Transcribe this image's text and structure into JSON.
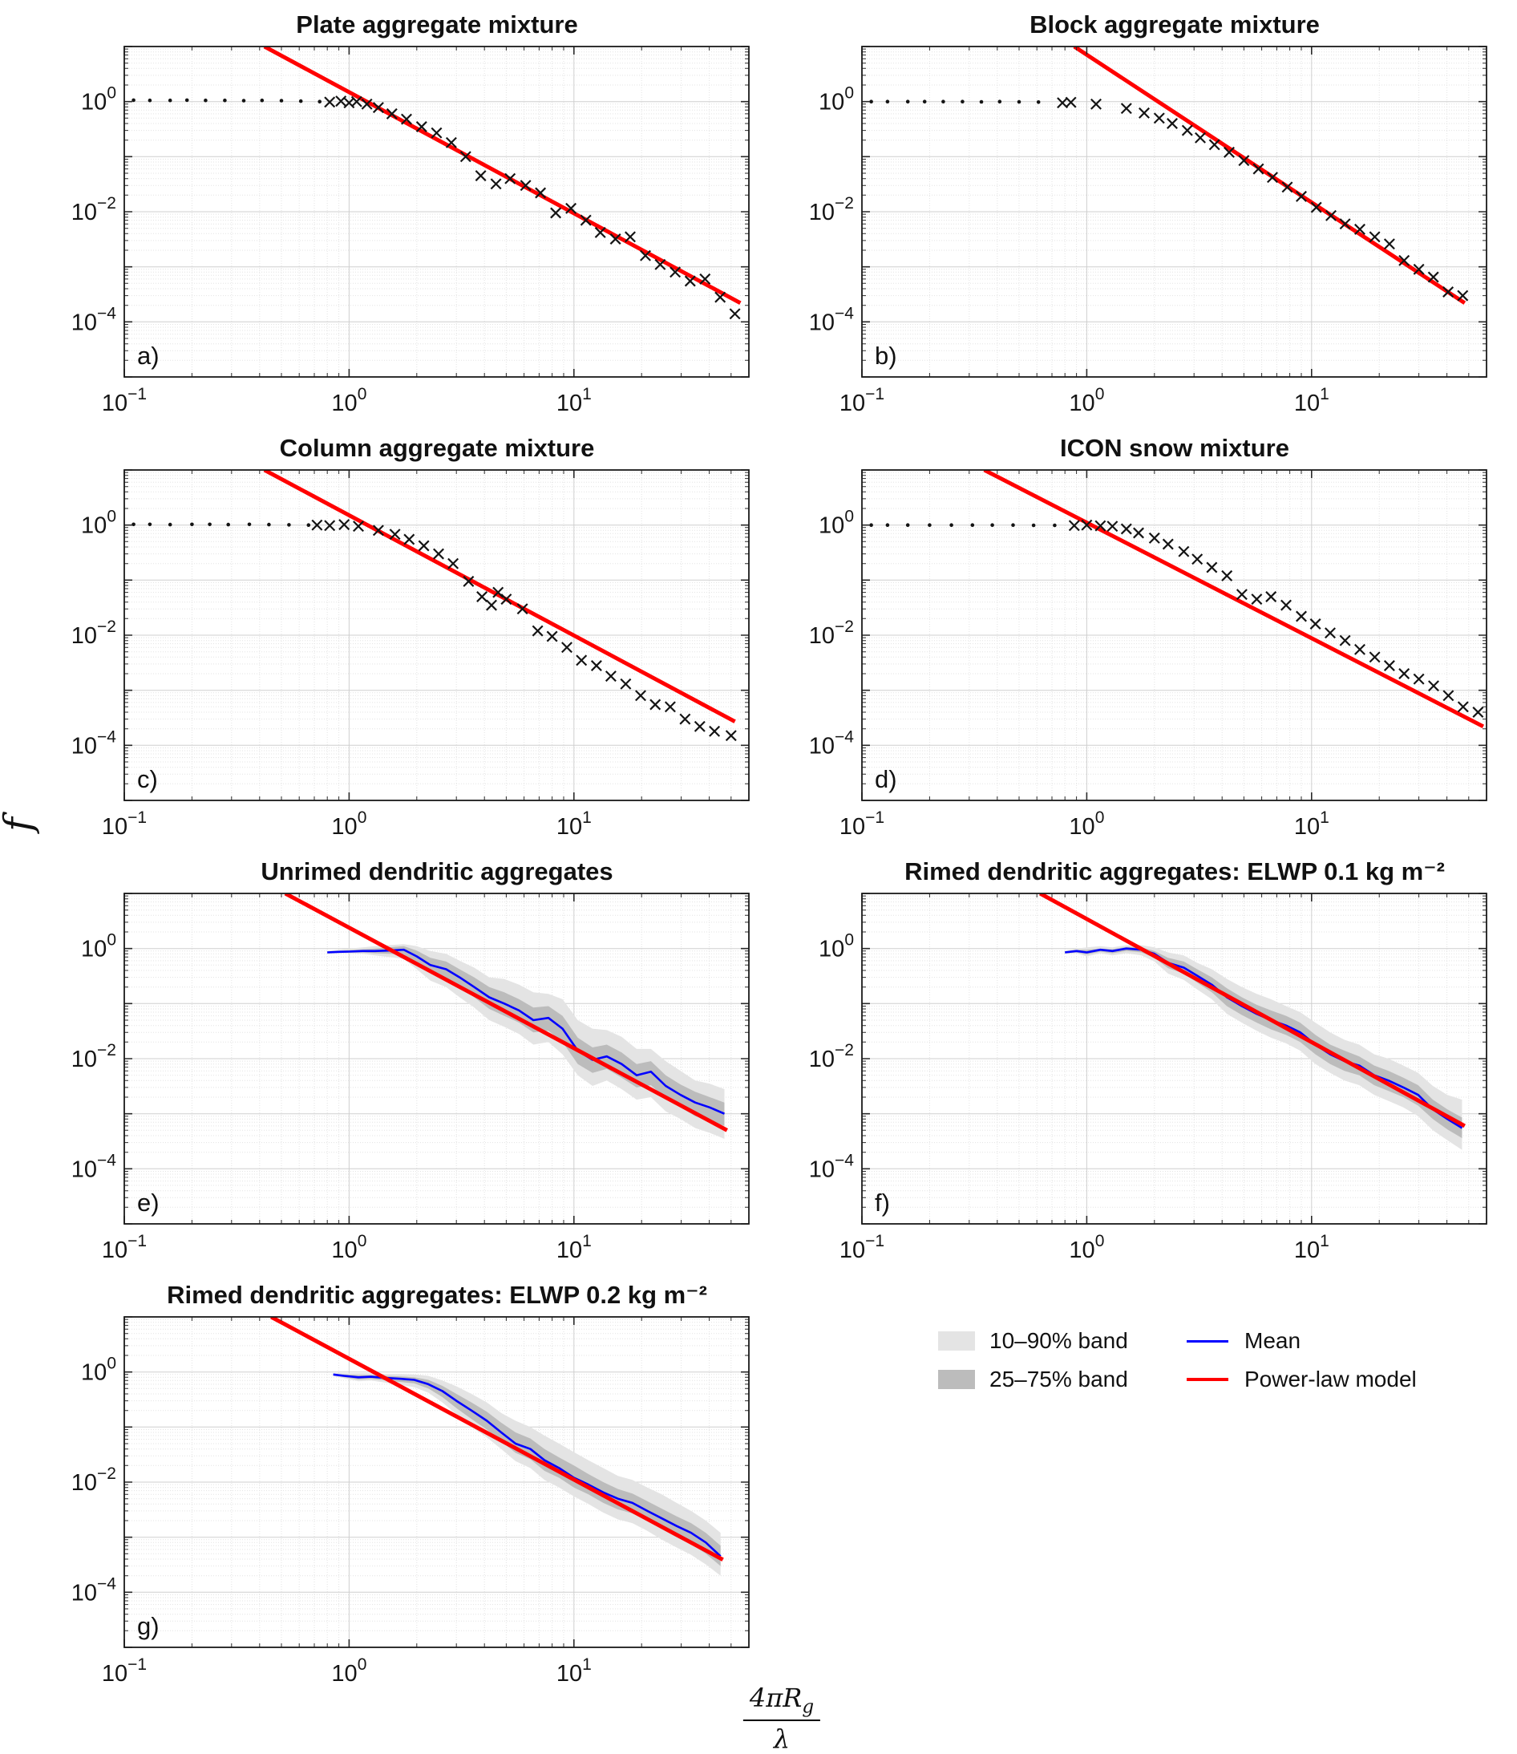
{
  "chart_data": {
    "type": "line",
    "ylabel": "f",
    "xlabel": {
      "num_main": "4πR",
      "num_sub": "g",
      "den": "λ"
    },
    "xlim": [
      0.1,
      60
    ],
    "ylim": [
      1e-05,
      10
    ],
    "xticks": [
      0.1,
      1,
      10
    ],
    "yticks": [
      1,
      0.01,
      0.0001
    ],
    "grid": "log-log, major and minor gridlines on",
    "colors": {
      "mean": "#0000ff",
      "powerlaw": "#ff0000",
      "band_light": "#e4e4e4",
      "band_dark": "#bcbcbc",
      "marker": "#141414"
    },
    "legend": [
      {
        "key": "band_light",
        "label": "10–90% band"
      },
      {
        "key": "band_dark",
        "label": "25–75% band"
      },
      {
        "key": "mean",
        "label": "Mean"
      },
      {
        "key": "powerlaw",
        "label": "Power-law model"
      }
    ],
    "panels": [
      {
        "id": "a",
        "label": "a)",
        "title": "Plate aggregate mixture",
        "kind": "scatter",
        "dots": {
          "x": [
            0.11,
            0.13,
            0.16,
            0.19,
            0.23,
            0.28,
            0.34,
            0.41,
            0.5,
            0.61,
            0.74
          ],
          "y": [
            1.06,
            1.05,
            1.05,
            1.06,
            1.05,
            1.05,
            1.04,
            1.05,
            1.04,
            1.02,
            1.0
          ]
        },
        "crosses": {
          "x": [
            0.82,
            0.92,
            1.0,
            1.08,
            1.2,
            1.35,
            1.55,
            1.8,
            2.1,
            2.45,
            2.85,
            3.3,
            3.85,
            4.5,
            5.2,
            6.1,
            7.1,
            8.3,
            9.7,
            11.3,
            13.1,
            15.3,
            17.8,
            20.8,
            24.2,
            28.2,
            32.9,
            38.3,
            44.7,
            52
          ],
          "y": [
            0.98,
            1.02,
            0.95,
            1.0,
            0.9,
            0.78,
            0.6,
            0.48,
            0.35,
            0.27,
            0.18,
            0.1,
            0.045,
            0.032,
            0.04,
            0.03,
            0.022,
            0.0095,
            0.0115,
            0.007,
            0.0042,
            0.0032,
            0.0035,
            0.0016,
            0.0011,
            0.0008,
            0.00055,
            0.0006,
            0.00028,
            0.00014
          ]
        },
        "powerlaw": {
          "x": [
            0.42,
            55
          ],
          "y": [
            10,
            0.00022
          ]
        }
      },
      {
        "id": "b",
        "label": "b)",
        "title": "Block aggregate mixture",
        "kind": "scatter",
        "dots": {
          "x": [
            0.11,
            0.13,
            0.16,
            0.19,
            0.23,
            0.28,
            0.34,
            0.41,
            0.5,
            0.61
          ],
          "y": [
            1.0,
            1.0,
            1.0,
            1.0,
            1.0,
            1.0,
            0.99,
            1.0,
            0.99,
            0.98
          ]
        },
        "crosses": {
          "x": [
            0.78,
            0.85,
            1.1,
            1.5,
            1.8,
            2.1,
            2.4,
            2.8,
            3.2,
            3.7,
            4.3,
            5.0,
            5.8,
            6.7,
            7.8,
            9.0,
            10.5,
            12.2,
            14.1,
            16.4,
            19.1,
            22.2,
            25.8,
            30.0,
            34.8,
            40.5,
            47
          ],
          "y": [
            0.95,
            0.97,
            0.9,
            0.75,
            0.62,
            0.5,
            0.4,
            0.3,
            0.22,
            0.165,
            0.12,
            0.085,
            0.06,
            0.042,
            0.028,
            0.019,
            0.012,
            0.0085,
            0.006,
            0.0048,
            0.0035,
            0.0026,
            0.0013,
            0.0009,
            0.00065,
            0.00035,
            0.0003
          ]
        },
        "powerlaw": {
          "x": [
            0.88,
            48
          ],
          "y": [
            10,
            0.00022
          ]
        }
      },
      {
        "id": "c",
        "label": "c)",
        "title": "Column aggregate mixture",
        "kind": "scatter",
        "dots": {
          "x": [
            0.11,
            0.13,
            0.16,
            0.2,
            0.24,
            0.29,
            0.36,
            0.44,
            0.54,
            0.66
          ],
          "y": [
            1.03,
            1.03,
            1.02,
            1.03,
            1.03,
            1.02,
            1.03,
            1.02,
            1.01,
            1.0
          ]
        },
        "crosses": {
          "x": [
            0.72,
            0.82,
            0.95,
            1.1,
            1.35,
            1.6,
            1.85,
            2.15,
            2.5,
            2.9,
            3.4,
            3.9,
            4.3,
            4.6,
            5.0,
            5.9,
            6.9,
            8.0,
            9.3,
            10.8,
            12.6,
            14.6,
            17.0,
            19.8,
            23.0,
            26.8,
            31.2,
            36.3,
            42.2,
            50
          ],
          "y": [
            1.0,
            0.98,
            1.02,
            0.95,
            0.8,
            0.68,
            0.55,
            0.42,
            0.3,
            0.2,
            0.095,
            0.05,
            0.035,
            0.06,
            0.045,
            0.03,
            0.012,
            0.0095,
            0.006,
            0.0035,
            0.0028,
            0.0018,
            0.0013,
            0.0008,
            0.00055,
            0.0005,
            0.0003,
            0.00022,
            0.00018,
            0.00015
          ]
        },
        "powerlaw": {
          "x": [
            0.42,
            52
          ],
          "y": [
            10,
            0.00027
          ]
        }
      },
      {
        "id": "d",
        "label": "d)",
        "title": "ICON snow mixture",
        "kind": "scatter",
        "dots": {
          "x": [
            0.11,
            0.13,
            0.16,
            0.2,
            0.25,
            0.31,
            0.38,
            0.47,
            0.58,
            0.72
          ],
          "y": [
            1.0,
            1.0,
            1.0,
            1.0,
            1.0,
            1.0,
            1.0,
            1.0,
            0.99,
            0.99
          ]
        },
        "crosses": {
          "x": [
            0.88,
            1.0,
            1.15,
            1.3,
            1.5,
            1.7,
            2.0,
            2.3,
            2.7,
            3.1,
            3.6,
            4.2,
            4.9,
            5.7,
            6.6,
            7.7,
            9.0,
            10.4,
            12.1,
            14.1,
            16.4,
            19.1,
            22.2,
            25.8,
            30.0,
            34.9,
            40.6,
            47.2,
            55
          ],
          "y": [
            0.98,
            1.0,
            0.97,
            0.95,
            0.85,
            0.72,
            0.58,
            0.45,
            0.33,
            0.24,
            0.17,
            0.12,
            0.055,
            0.045,
            0.05,
            0.035,
            0.022,
            0.016,
            0.011,
            0.008,
            0.0055,
            0.004,
            0.0028,
            0.002,
            0.0016,
            0.0012,
            0.0008,
            0.0005,
            0.0004
          ]
        },
        "powerlaw": {
          "x": [
            0.35,
            58
          ],
          "y": [
            10,
            0.00022
          ]
        }
      },
      {
        "id": "e",
        "label": "e)",
        "title": "Unrimed dendritic aggregates",
        "kind": "band",
        "x": [
          0.8,
          0.9,
          1.0,
          1.15,
          1.3,
          1.5,
          1.75,
          2.0,
          2.3,
          2.7,
          3.1,
          3.6,
          4.2,
          4.9,
          5.7,
          6.6,
          7.7,
          8.9,
          10.4,
          12.1,
          14.0,
          16.3,
          19.0,
          22.0,
          25.6,
          29.8,
          34.6,
          40.2,
          46.7
        ],
        "mean": [
          0.85,
          0.87,
          0.88,
          0.9,
          0.9,
          0.92,
          0.95,
          0.72,
          0.5,
          0.42,
          0.3,
          0.2,
          0.13,
          0.1,
          0.075,
          0.05,
          0.055,
          0.035,
          0.014,
          0.0095,
          0.011,
          0.008,
          0.005,
          0.0058,
          0.0032,
          0.0022,
          0.0016,
          0.0013,
          0.001
        ],
        "p90": [
          0.9,
          0.95,
          1.0,
          1.05,
          1.1,
          1.15,
          1.2,
          1.1,
          0.9,
          0.8,
          0.6,
          0.45,
          0.3,
          0.28,
          0.22,
          0.16,
          0.15,
          0.12,
          0.05,
          0.035,
          0.033,
          0.025,
          0.015,
          0.015,
          0.009,
          0.006,
          0.004,
          0.0035,
          0.0028
        ],
        "p75": [
          0.87,
          0.9,
          0.93,
          0.97,
          1.0,
          1.05,
          1.1,
          0.92,
          0.68,
          0.58,
          0.42,
          0.3,
          0.2,
          0.16,
          0.12,
          0.085,
          0.09,
          0.06,
          0.024,
          0.016,
          0.018,
          0.013,
          0.008,
          0.009,
          0.005,
          0.0034,
          0.0025,
          0.002,
          0.0016
        ],
        "p25": [
          0.83,
          0.84,
          0.84,
          0.85,
          0.82,
          0.8,
          0.78,
          0.55,
          0.36,
          0.28,
          0.2,
          0.13,
          0.08,
          0.06,
          0.045,
          0.03,
          0.032,
          0.02,
          0.008,
          0.0055,
          0.0065,
          0.0045,
          0.003,
          0.0033,
          0.0019,
          0.0013,
          0.0009,
          0.00075,
          0.0006
        ],
        "p10": [
          0.8,
          0.82,
          0.82,
          0.8,
          0.75,
          0.7,
          0.65,
          0.42,
          0.26,
          0.2,
          0.13,
          0.085,
          0.05,
          0.038,
          0.028,
          0.018,
          0.02,
          0.012,
          0.005,
          0.0032,
          0.004,
          0.0028,
          0.0018,
          0.002,
          0.0011,
          0.0008,
          0.00055,
          0.00045,
          0.00035
        ],
        "powerlaw": {
          "x": [
            0.52,
            48
          ],
          "y": [
            10,
            0.0005
          ]
        }
      },
      {
        "id": "f",
        "label": "f)",
        "title": "Rimed dendritic aggregates: ELWP 0.1 kg m⁻²",
        "kind": "band",
        "x": [
          0.8,
          0.9,
          1.0,
          1.15,
          1.3,
          1.5,
          1.75,
          2.0,
          2.3,
          2.7,
          3.1,
          3.6,
          4.2,
          4.9,
          5.7,
          6.6,
          7.7,
          8.9,
          10.4,
          12.1,
          14.0,
          16.3,
          19.0,
          22.0,
          25.6,
          29.8,
          34.6,
          40.2,
          46.7
        ],
        "mean": [
          0.85,
          0.9,
          0.85,
          0.95,
          0.9,
          1.0,
          0.95,
          0.8,
          0.55,
          0.45,
          0.32,
          0.22,
          0.13,
          0.09,
          0.065,
          0.05,
          0.04,
          0.03,
          0.018,
          0.012,
          0.009,
          0.0075,
          0.005,
          0.004,
          0.003,
          0.0022,
          0.0012,
          0.0008,
          0.00055
        ],
        "p90": [
          0.92,
          1.0,
          1.05,
          1.1,
          1.05,
          1.15,
          1.15,
          1.05,
          0.85,
          0.75,
          0.55,
          0.42,
          0.28,
          0.2,
          0.15,
          0.12,
          0.09,
          0.07,
          0.045,
          0.03,
          0.022,
          0.018,
          0.012,
          0.01,
          0.0075,
          0.0055,
          0.0032,
          0.0022,
          0.0018
        ],
        "p75": [
          0.88,
          0.95,
          0.95,
          1.0,
          0.97,
          1.07,
          1.05,
          0.9,
          0.68,
          0.58,
          0.42,
          0.3,
          0.19,
          0.13,
          0.095,
          0.075,
          0.06,
          0.045,
          0.027,
          0.018,
          0.014,
          0.011,
          0.0075,
          0.006,
          0.0045,
          0.0033,
          0.0018,
          0.0012,
          0.00085
        ],
        "p25": [
          0.82,
          0.85,
          0.78,
          0.88,
          0.82,
          0.9,
          0.85,
          0.68,
          0.44,
          0.35,
          0.24,
          0.16,
          0.09,
          0.062,
          0.045,
          0.034,
          0.027,
          0.02,
          0.012,
          0.008,
          0.006,
          0.005,
          0.0033,
          0.0026,
          0.002,
          0.0014,
          0.0008,
          0.00052,
          0.00036
        ],
        "p10": [
          0.8,
          0.82,
          0.72,
          0.82,
          0.75,
          0.82,
          0.75,
          0.58,
          0.35,
          0.27,
          0.18,
          0.12,
          0.065,
          0.045,
          0.032,
          0.024,
          0.019,
          0.014,
          0.008,
          0.0055,
          0.004,
          0.0033,
          0.0022,
          0.0017,
          0.0013,
          0.0009,
          0.0005,
          0.00033,
          0.00022
        ],
        "powerlaw": {
          "x": [
            0.62,
            48
          ],
          "y": [
            10,
            0.0006
          ]
        }
      },
      {
        "id": "g",
        "label": "g)",
        "title": "Rimed dendritic aggregates: ELWP 0.2 kg m⁻²",
        "kind": "band",
        "x": [
          0.85,
          0.95,
          1.1,
          1.25,
          1.45,
          1.7,
          1.95,
          2.25,
          2.6,
          3.0,
          3.5,
          4.1,
          4.75,
          5.5,
          6.4,
          7.4,
          8.6,
          10.0,
          11.6,
          13.5,
          15.7,
          18.2,
          21.2,
          24.6,
          28.6,
          33.2,
          38.6,
          44.9
        ],
        "mean": [
          0.9,
          0.85,
          0.8,
          0.82,
          0.78,
          0.75,
          0.72,
          0.6,
          0.45,
          0.3,
          0.2,
          0.13,
          0.08,
          0.05,
          0.04,
          0.025,
          0.018,
          0.012,
          0.009,
          0.0065,
          0.005,
          0.0042,
          0.003,
          0.0022,
          0.0016,
          0.0012,
          0.0008,
          0.00045
        ],
        "p90": [
          0.95,
          0.95,
          0.95,
          0.95,
          0.92,
          0.92,
          0.9,
          0.85,
          0.7,
          0.55,
          0.4,
          0.28,
          0.18,
          0.13,
          0.1,
          0.07,
          0.05,
          0.035,
          0.025,
          0.018,
          0.013,
          0.011,
          0.008,
          0.006,
          0.0042,
          0.003,
          0.002,
          0.0012
        ],
        "p75": [
          0.92,
          0.9,
          0.88,
          0.88,
          0.85,
          0.83,
          0.8,
          0.72,
          0.56,
          0.4,
          0.28,
          0.19,
          0.12,
          0.08,
          0.062,
          0.04,
          0.028,
          0.02,
          0.014,
          0.01,
          0.0075,
          0.0062,
          0.0045,
          0.0033,
          0.0024,
          0.0018,
          0.0012,
          0.0007
        ],
        "p25": [
          0.87,
          0.8,
          0.73,
          0.75,
          0.7,
          0.66,
          0.62,
          0.5,
          0.35,
          0.22,
          0.14,
          0.09,
          0.055,
          0.034,
          0.026,
          0.016,
          0.012,
          0.008,
          0.006,
          0.0042,
          0.0032,
          0.0027,
          0.002,
          0.0014,
          0.001,
          0.00075,
          0.0005,
          0.0003
        ],
        "p10": [
          0.85,
          0.77,
          0.68,
          0.7,
          0.64,
          0.58,
          0.53,
          0.42,
          0.28,
          0.17,
          0.1,
          0.065,
          0.04,
          0.024,
          0.018,
          0.011,
          0.008,
          0.0055,
          0.004,
          0.0028,
          0.0021,
          0.0018,
          0.0013,
          0.0009,
          0.00065,
          0.00048,
          0.00032,
          0.0002
        ],
        "powerlaw": {
          "x": [
            0.45,
            46
          ],
          "y": [
            10,
            0.00039
          ]
        }
      }
    ]
  }
}
